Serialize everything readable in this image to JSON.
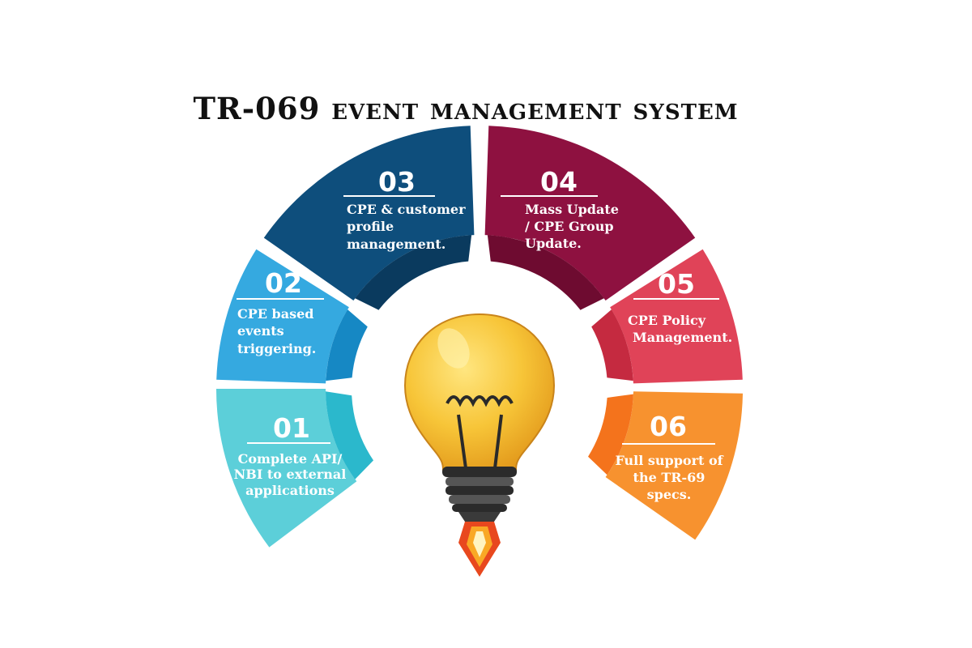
{
  "title": "TR-069 event management system",
  "segments": [
    {
      "number": "01",
      "lines": [
        "Complete API/",
        "NBI to external",
        "applications"
      ],
      "color": "#5ccfd9",
      "dark": "#2bb8cc"
    },
    {
      "number": "02",
      "lines": [
        "CPE based",
        "events",
        "triggering."
      ],
      "color": "#35a9e0",
      "dark": "#1688c4"
    },
    {
      "number": "03",
      "lines": [
        "CPE & customer",
        "profile",
        "management."
      ],
      "color": "#0e4e7c",
      "dark": "#0a3a5e"
    },
    {
      "number": "04",
      "lines": [
        "Mass Update",
        "/ CPE Group",
        "Update."
      ],
      "color": "#8e1140",
      "dark": "#6e0b30"
    },
    {
      "number": "05",
      "lines": [
        "CPE Policy",
        "Management."
      ],
      "color": "#e04358",
      "dark": "#c52a40"
    },
    {
      "number": "06",
      "lines": [
        "Full support of",
        "the TR-69",
        "specs."
      ],
      "color": "#f7922f",
      "dark": "#f4731c"
    }
  ],
  "icons": {
    "center": "lightbulb-icon",
    "flame": "rocket-flame-icon"
  }
}
